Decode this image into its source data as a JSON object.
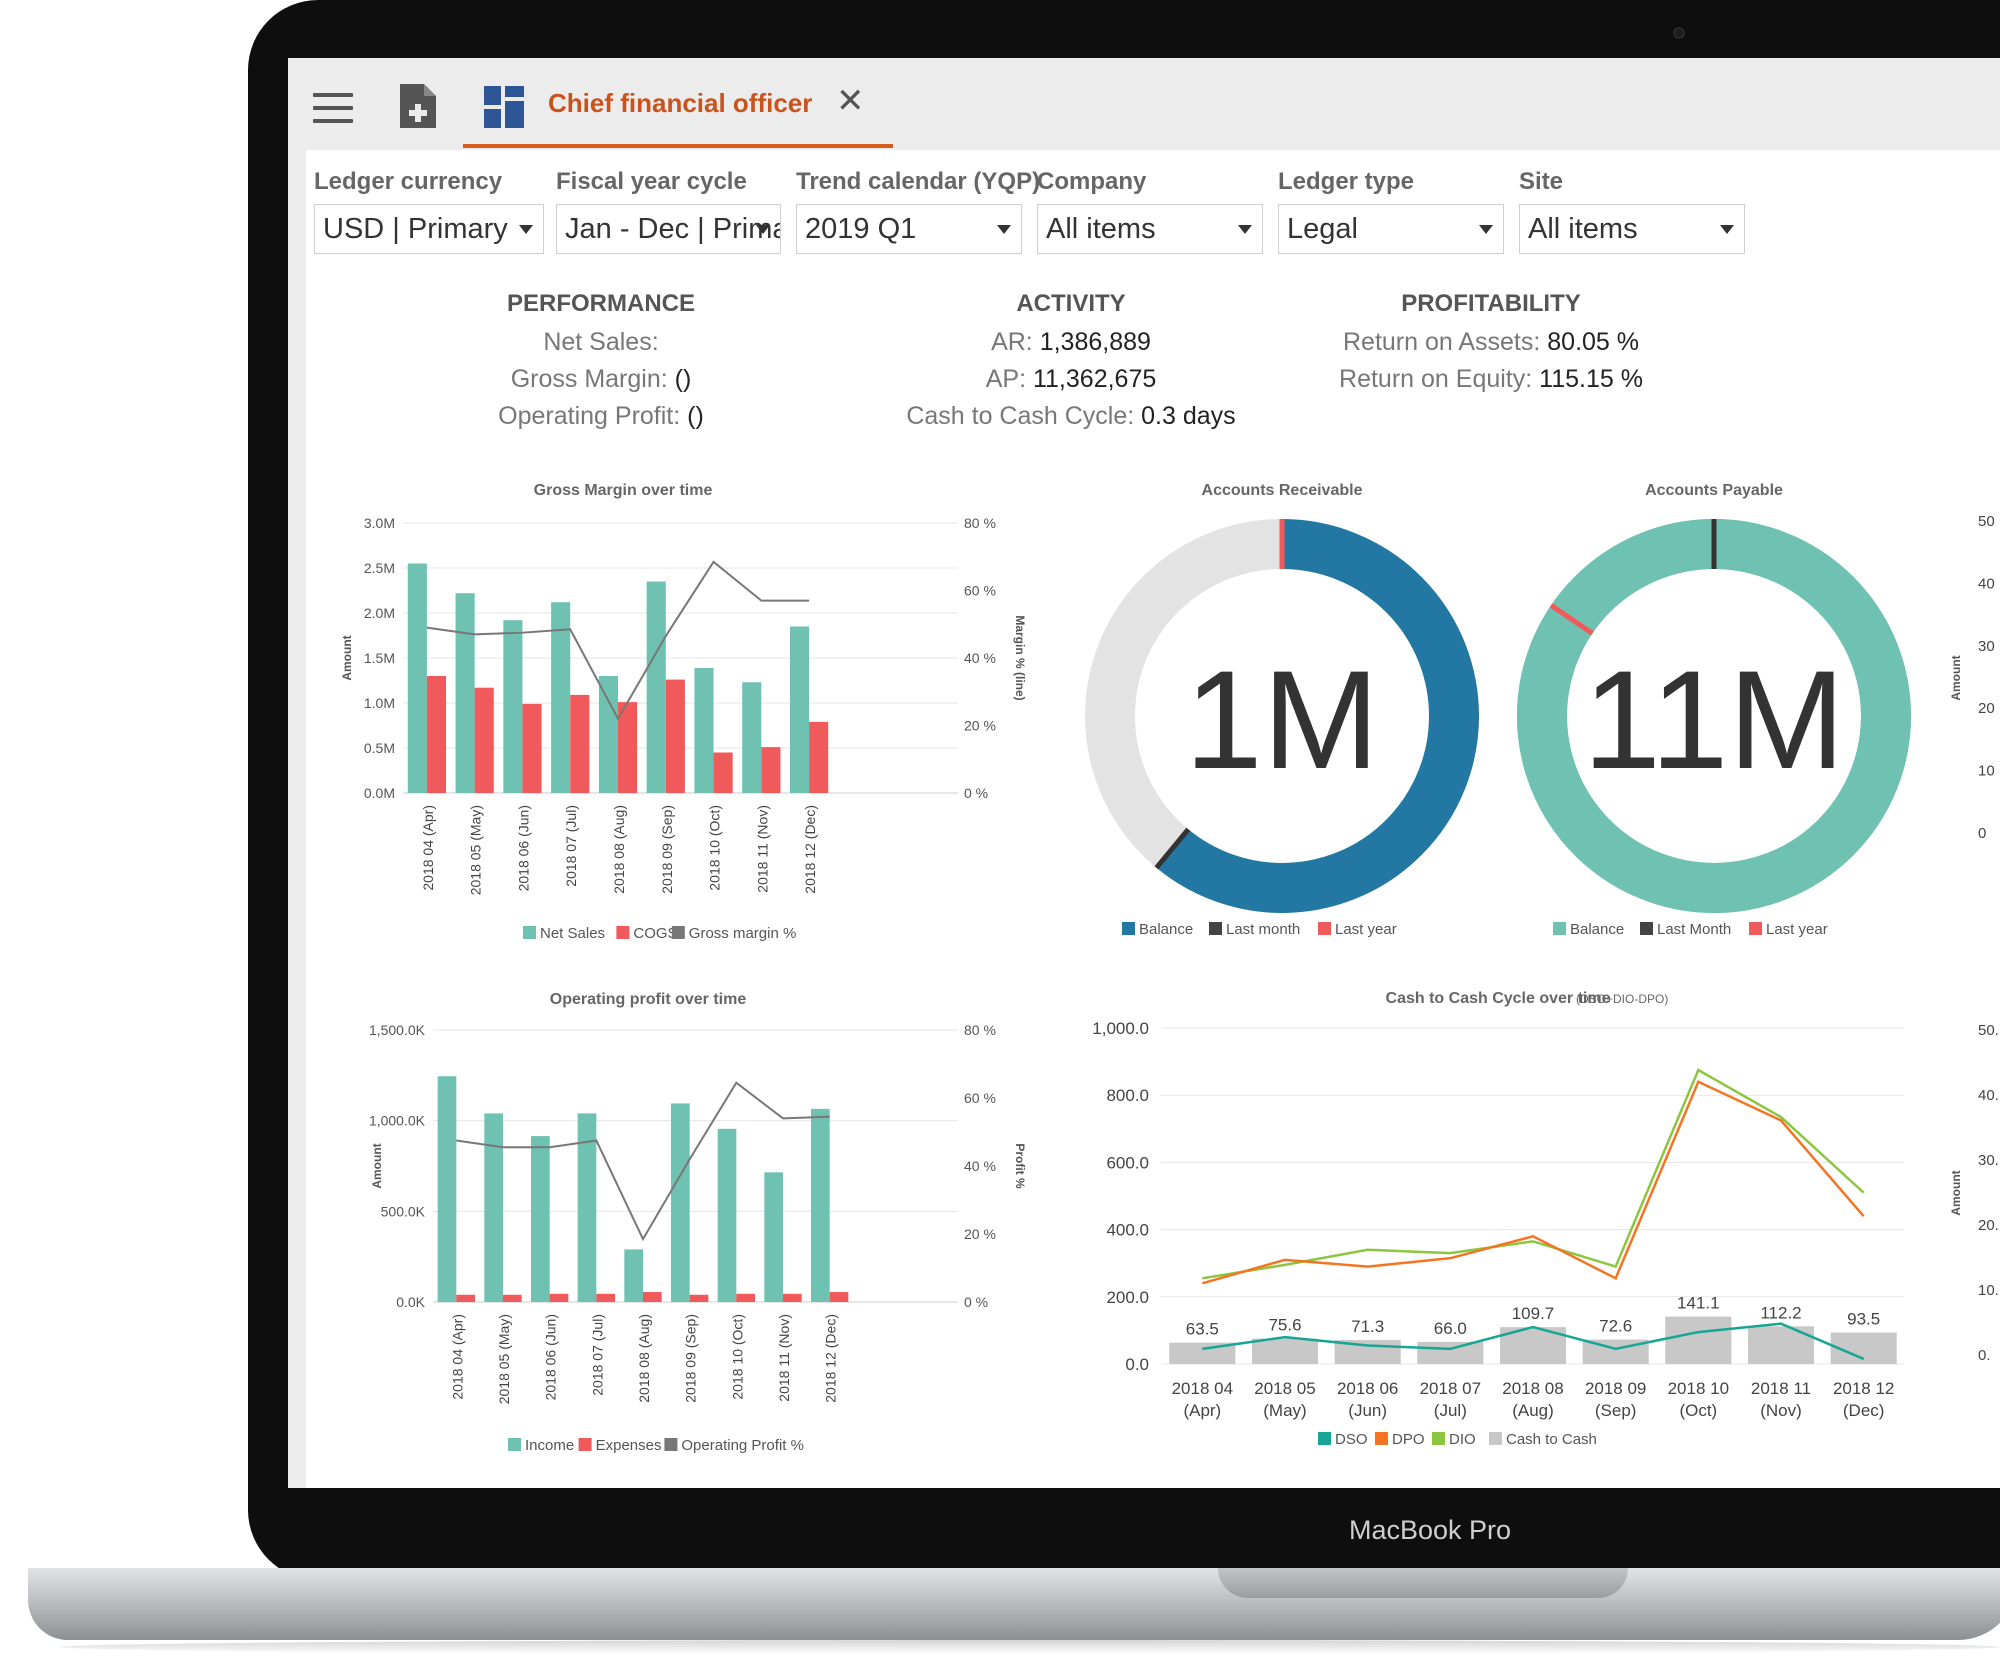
{
  "device": {
    "brand": "MacBook Pro"
  },
  "tab": {
    "title": "Chief financial officer"
  },
  "icons": {
    "menu": "hamburger-menu-icon",
    "new_doc": "add-document-icon",
    "workspace": "workspace-grid-icon",
    "close": "close-icon"
  },
  "filters": [
    {
      "label": "Ledger currency",
      "value": "USD | Primary"
    },
    {
      "label": "Fiscal year cycle",
      "value": "Jan - Dec | Primary"
    },
    {
      "label": "Trend calendar (YQP)",
      "value": "2019 Q1"
    },
    {
      "label": "Company",
      "value": "All items"
    },
    {
      "label": "Ledger type",
      "value": "Legal"
    },
    {
      "label": "Site",
      "value": "All items"
    }
  ],
  "kpis": {
    "performance": {
      "heading": "PERFORMANCE",
      "net_sales_label": "Net Sales:",
      "net_sales_value": "",
      "gross_margin_label": "Gross Margin:",
      "gross_margin_value": "()",
      "operating_profit_label": "Operating Profit:",
      "operating_profit_value": "()"
    },
    "activity": {
      "heading": "ACTIVITY",
      "ar_label": "AR:",
      "ar_value": "1,386,889",
      "ap_label": "AP:",
      "ap_value": "11,362,675",
      "c2c_label": "Cash to Cash Cycle:",
      "c2c_value": "0.3 days"
    },
    "profitability": {
      "heading": "PROFITABILITY",
      "roa_label": "Return on Assets:",
      "roa_value": "80.05 %",
      "roe_label": "Return on Equity:",
      "roe_value": "115.15 %"
    }
  },
  "colors": {
    "teal": "#6fc1b1",
    "red": "#f15a5a",
    "gray_line": "#777777",
    "ar_blue": "#2278a3",
    "ring_gray": "#e3e3e3",
    "accent": "#d55b1e",
    "dso": "#17a695",
    "dpo": "#f47421",
    "dio": "#8cc63f",
    "c2c_bar": "#c8c8c8"
  },
  "chart_data": [
    {
      "type": "bar",
      "title": "Gross Margin over time",
      "ylabel": "Amount",
      "y2label": "Margin % (line)",
      "categories": [
        "2018 04 (Apr)",
        "2018 05 (May)",
        "2018 06 (Jun)",
        "2018 07 (Jul)",
        "2018 08 (Aug)",
        "2018 09 (Sep)",
        "2018 10 (Oct)",
        "2018 11 (Nov)",
        "2018 12 (Dec)"
      ],
      "ylim": [
        0,
        3.0
      ],
      "yticks": [
        "0.0M",
        "0.5M",
        "1.0M",
        "1.5M",
        "2.0M",
        "2.5M",
        "3.0M"
      ],
      "y2lim": [
        0,
        80
      ],
      "y2ticks": [
        "0 %",
        "20 %",
        "40 %",
        "60 %",
        "80 %"
      ],
      "series": [
        {
          "name": "Net Sales",
          "values": [
            2.55,
            2.22,
            1.92,
            2.12,
            1.3,
            2.35,
            1.39,
            1.23,
            1.85
          ]
        },
        {
          "name": "COGS",
          "values": [
            1.3,
            1.17,
            0.99,
            1.09,
            1.01,
            1.26,
            0.45,
            0.51,
            0.79
          ]
        },
        {
          "name": "Gross margin %",
          "values": [
            49,
            47,
            47.5,
            48.5,
            22,
            46.5,
            68.5,
            57,
            57
          ]
        }
      ]
    },
    {
      "type": "pie",
      "title": "Accounts Receivable",
      "center_label": "1M",
      "values": {
        "balance_fraction": 0.61,
        "last_month_fraction": 0.61,
        "last_year_fraction": 0.0
      },
      "legend": [
        "Balance",
        "Last month",
        "Last year"
      ]
    },
    {
      "type": "pie",
      "title": "Accounts Payable",
      "center_label": "11M",
      "values": {
        "balance_fraction": 1.0,
        "last_month_fraction": 0.0,
        "last_year_fraction": 0.845
      },
      "legend": [
        "Balance",
        "Last Month",
        "Last year"
      ]
    },
    {
      "type": "bar",
      "title": "Operating profit over time",
      "ylabel": "Amount",
      "y2label": "Profit %",
      "categories": [
        "2018 04 (Apr)",
        "2018 05 (May)",
        "2018 06 (Jun)",
        "2018 07 (Jul)",
        "2018 08 (Aug)",
        "2018 09 (Sep)",
        "2018 10 (Oct)",
        "2018 11 (Nov)",
        "2018 12 (Dec)"
      ],
      "ylim": [
        0,
        1500
      ],
      "yticks": [
        "0.0K",
        "500.0K",
        "1,000.0K",
        "1,500.0K"
      ],
      "y2lim": [
        0,
        80
      ],
      "y2ticks": [
        "0 %",
        "20 %",
        "40 %",
        "60 %",
        "80 %"
      ],
      "series": [
        {
          "name": "Income",
          "values": [
            1245,
            1040,
            915,
            1040,
            290,
            1095,
            955,
            715,
            1065
          ]
        },
        {
          "name": "Expenses",
          "values": [
            40,
            40,
            45,
            45,
            55,
            40,
            45,
            45,
            55
          ]
        },
        {
          "name": "Operating Profit %",
          "values": [
            47.5,
            45.5,
            45.5,
            47.5,
            18.5,
            42,
            64.5,
            54,
            54.5
          ]
        }
      ]
    },
    {
      "type": "line",
      "title": "Cash to Cash Cycle over time",
      "subtitle": "(DSO+DIO-DPO)",
      "categories": [
        [
          "2018 04",
          "(Apr)"
        ],
        [
          "2018 05",
          "(May)"
        ],
        [
          "2018 06",
          "(Jun)"
        ],
        [
          "2018 07",
          "(Jul)"
        ],
        [
          "2018 08",
          "(Aug)"
        ],
        [
          "2018 09",
          "(Sep)"
        ],
        [
          "2018 10",
          "(Oct)"
        ],
        [
          "2018 11",
          "(Nov)"
        ],
        [
          "2018 12",
          "(Dec)"
        ]
      ],
      "ylim": [
        0,
        1000
      ],
      "yticks": [
        "0.0",
        "200.0",
        "400.0",
        "600.0",
        "800.0",
        "1,000.0"
      ],
      "series": [
        {
          "name": "DSO",
          "values": [
            45,
            80,
            55,
            45,
            110,
            45,
            95,
            120,
            15
          ]
        },
        {
          "name": "DPO",
          "values": [
            240,
            310,
            290,
            315,
            380,
            255,
            840,
            725,
            440
          ]
        },
        {
          "name": "DIO",
          "values": [
            255,
            295,
            340,
            330,
            365,
            290,
            875,
            735,
            510
          ]
        },
        {
          "name": "Cash to Cash",
          "values": [
            63.5,
            75.6,
            71.3,
            66.0,
            109.7,
            72.6,
            141.1,
            112.2,
            93.5
          ]
        }
      ]
    },
    {
      "type": "bar",
      "partial": true,
      "ylabel": "Amount",
      "yticks": [
        "0",
        "10",
        "20",
        "30",
        "40",
        "50"
      ]
    },
    {
      "type": "line",
      "partial": true,
      "ylabel": "Amount",
      "yticks": [
        "0.",
        "10.",
        "20.",
        "30.",
        "40.",
        "50."
      ]
    }
  ]
}
